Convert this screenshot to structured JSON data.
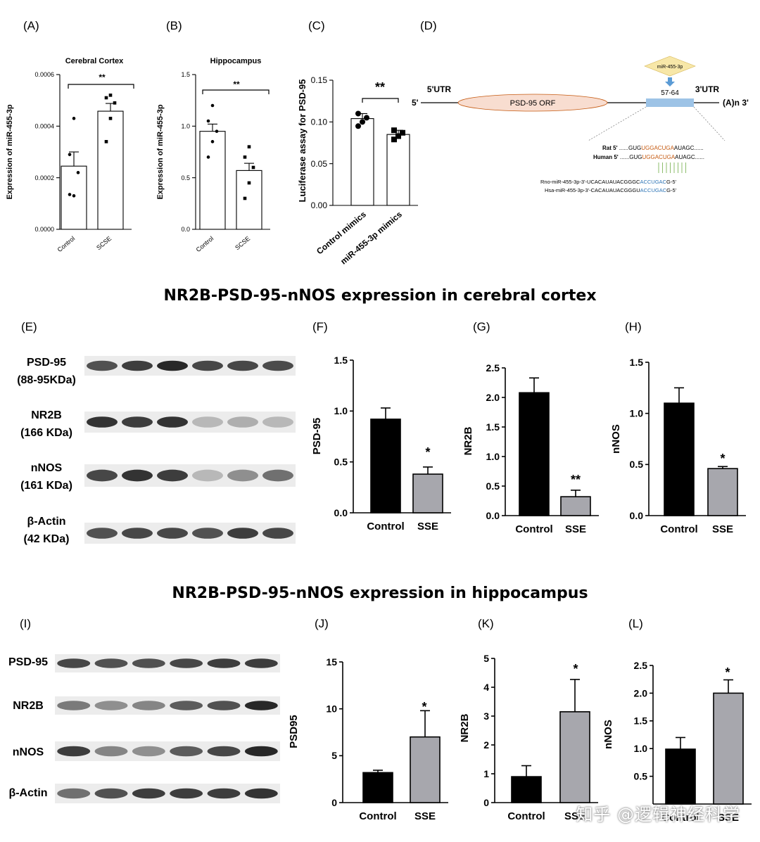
{
  "section_titles": {
    "cortex": "NR2B-PSD-95-nNOS expression in cerebral cortex",
    "hippocampus": "NR2B-PSD-95-nNOS expression in hippocampus"
  },
  "watermark": "知乎 @逻辑神经科学",
  "colors": {
    "black_bar": "#000000",
    "gray_bar": "#a7a7ad",
    "orf": "#f8ddd0",
    "utr_box": "#9dc3e6",
    "mir_box": "#f7e7a8",
    "arrow": "#5b9bd5",
    "seed_orange": "#c55a11",
    "seed_blue": "#2e75b6",
    "pair_lines": "#70ad47"
  },
  "diagram": {
    "panel": "(D)",
    "mir_label": "miR-455-3p",
    "site": "57-64",
    "utr5": "5'UTR",
    "utr3": "3'UTR",
    "end5": "5'",
    "end3": "(A)n 3'",
    "orf": "PSD-95   ORF",
    "rat_prefix": "Rat  5'",
    "rat_seq": [
      "......GUG",
      "UGGACUGA",
      "AUAGC......"
    ],
    "human_prefix": "Human  5'",
    "human_seq": [
      "......GUG",
      "UGGACUGA",
      "AUAGC......"
    ],
    "rno_line": [
      "Rno-miR-455-3p-3'-UCACAUAUACGGGC",
      "ACCUGAC",
      "G-5'"
    ],
    "hsa_line": [
      "Hsa-miR-455-3p-3'-CACAUAUACGGGU",
      "ACCUGAC",
      "G-5'"
    ]
  },
  "blots": [
    {
      "panel": "(E)",
      "rows": [
        {
          "label": [
            "PSD-95",
            "(88-95KDa)"
          ],
          "intensity": [
            0.75,
            0.85,
            0.95,
            0.8,
            0.8,
            0.78
          ]
        },
        {
          "label": [
            "NR2B",
            "(166 KDa)"
          ],
          "intensity": [
            0.9,
            0.85,
            0.9,
            0.25,
            0.3,
            0.25
          ]
        },
        {
          "label": [
            "nNOS",
            "(161 KDa)"
          ],
          "intensity": [
            0.8,
            0.9,
            0.85,
            0.25,
            0.45,
            0.6
          ]
        },
        {
          "label": [
            "β-Actin",
            "(42 KDa)"
          ],
          "intensity": [
            0.75,
            0.8,
            0.8,
            0.75,
            0.85,
            0.8
          ]
        }
      ]
    },
    {
      "panel": "(I)",
      "rows": [
        {
          "label": [
            "PSD-95"
          ],
          "intensity": [
            0.8,
            0.75,
            0.75,
            0.8,
            0.85,
            0.85
          ]
        },
        {
          "label": [
            "NR2B"
          ],
          "intensity": [
            0.55,
            0.45,
            0.5,
            0.7,
            0.75,
            0.95
          ]
        },
        {
          "label": [
            "nNOS"
          ],
          "intensity": [
            0.85,
            0.5,
            0.45,
            0.7,
            0.8,
            0.95
          ]
        },
        {
          "label": [
            "β-Actin"
          ],
          "intensity": [
            0.6,
            0.75,
            0.85,
            0.85,
            0.85,
            0.9
          ]
        }
      ]
    }
  ],
  "chart_data": [
    {
      "panel": "(A)",
      "type": "bar",
      "title": "Cerebral Cortex",
      "ylabel": "Expression of miR-455-3p",
      "categories": [
        "Control",
        "SCSE"
      ],
      "values": [
        0.000245,
        0.000458
      ],
      "errors": [
        5.5e-05,
        3e-05
      ],
      "ylim": [
        0,
        0.0006
      ],
      "yticks": [
        "0.0000",
        "0.0002",
        "0.0004",
        "0.0006"
      ],
      "ytick_values": [
        0,
        0.0002,
        0.0004,
        0.0006
      ],
      "bar_colors": [
        "#ffffff",
        "#ffffff"
      ],
      "significance": "**",
      "points": [
        [
          0.000135,
          0.00013,
          0.00022,
          0.00029,
          0.00043
        ],
        [
          0.00034,
          0.00043,
          0.00049,
          0.00051,
          0.00052
        ]
      ]
    },
    {
      "panel": "(B)",
      "type": "bar",
      "title": "Hippocampus",
      "ylabel": "Expression of miR-455-3p",
      "categories": [
        "Control",
        "SCSE"
      ],
      "values": [
        0.95,
        0.57
      ],
      "errors": [
        0.07,
        0.07
      ],
      "ylim": [
        0,
        1.5
      ],
      "yticks": [
        "0.0",
        "0.5",
        "1.0",
        "1.5"
      ],
      "ytick_values": [
        0,
        0.5,
        1.0,
        1.5
      ],
      "bar_colors": [
        "#ffffff",
        "#ffffff"
      ],
      "significance": "**",
      "points": [
        [
          0.7,
          0.85,
          0.95,
          1.05,
          1.2
        ],
        [
          0.3,
          0.45,
          0.6,
          0.7,
          0.8
        ]
      ]
    },
    {
      "panel": "(C)",
      "type": "bar",
      "title": "",
      "ylabel": "Luciferase  assay for PSD-95",
      "categories": [
        "Control mimics",
        "miR-455-3p mimics"
      ],
      "values": [
        0.104,
        0.085
      ],
      "errors": [
        0.006,
        0.005
      ],
      "ylim": [
        0,
        0.15
      ],
      "yticks": [
        "0.00",
        "0.05",
        "0.10",
        "0.15"
      ],
      "ytick_values": [
        0,
        0.05,
        0.1,
        0.15
      ],
      "bar_colors": [
        "#ffffff",
        "#ffffff"
      ],
      "significance": "**",
      "points": [
        [
          0.095,
          0.1,
          0.105,
          0.11
        ],
        [
          0.079,
          0.083,
          0.087,
          0.09
        ]
      ]
    },
    {
      "panel": "(F)",
      "type": "bar",
      "title": "",
      "ylabel": "PSD-95",
      "categories": [
        "Control",
        "SSE"
      ],
      "values": [
        0.92,
        0.38
      ],
      "errors": [
        0.11,
        0.07
      ],
      "ylim": [
        0,
        1.5
      ],
      "yticks": [
        "0.0",
        "0.5",
        "1.0",
        "1.5"
      ],
      "ytick_values": [
        0,
        0.5,
        1.0,
        1.5
      ],
      "bar_colors": [
        "#000000",
        "#a7a7ad"
      ],
      "significance": "*"
    },
    {
      "panel": "(G)",
      "type": "bar",
      "title": "",
      "ylabel": "NR2B",
      "categories": [
        "Control",
        "SSE"
      ],
      "values": [
        2.08,
        0.32
      ],
      "errors": [
        0.25,
        0.11
      ],
      "ylim": [
        0,
        2.5
      ],
      "yticks": [
        "0.0",
        "0.5",
        "1.0",
        "1.5",
        "2.0",
        "2.5"
      ],
      "ytick_values": [
        0,
        0.5,
        1.0,
        1.5,
        2.0,
        2.5
      ],
      "bar_colors": [
        "#000000",
        "#a7a7ad"
      ],
      "significance": "**"
    },
    {
      "panel": "(H)",
      "type": "bar",
      "title": "",
      "ylabel": "nNOS",
      "categories": [
        "Control",
        "SSE"
      ],
      "values": [
        1.1,
        0.46
      ],
      "errors": [
        0.15,
        0.02
      ],
      "ylim": [
        0,
        1.5
      ],
      "yticks": [
        "0.0",
        "0.5",
        "1.0",
        "1.5"
      ],
      "ytick_values": [
        0,
        0.5,
        1.0,
        1.5
      ],
      "bar_colors": [
        "#000000",
        "#a7a7ad"
      ],
      "significance": "*"
    },
    {
      "panel": "(J)",
      "type": "bar",
      "title": "",
      "ylabel": "PSD95",
      "categories": [
        "Control",
        "SSE"
      ],
      "values": [
        3.2,
        7.0
      ],
      "errors": [
        0.25,
        2.8
      ],
      "ylim": [
        0,
        15
      ],
      "yticks": [
        "0",
        "5",
        "10",
        "15"
      ],
      "ytick_values": [
        0,
        5,
        10,
        15
      ],
      "bar_colors": [
        "#000000",
        "#a7a7ad"
      ],
      "significance": "*"
    },
    {
      "panel": "(K)",
      "type": "bar",
      "title": "",
      "ylabel": "NR2B",
      "categories": [
        "Control",
        "SSE"
      ],
      "values": [
        0.9,
        3.15
      ],
      "errors": [
        0.38,
        1.12
      ],
      "ylim": [
        0,
        5
      ],
      "yticks": [
        "0",
        "1",
        "2",
        "3",
        "4",
        "5"
      ],
      "ytick_values": [
        0,
        1,
        2,
        3,
        4,
        5
      ],
      "bar_colors": [
        "#000000",
        "#a7a7ad"
      ],
      "significance": "*"
    },
    {
      "panel": "(L)",
      "type": "bar",
      "title": "",
      "ylabel": "nNOS",
      "categories": [
        "Control",
        "SSE"
      ],
      "values": [
        0.99,
        2.0
      ],
      "errors": [
        0.21,
        0.24
      ],
      "ylim": [
        0,
        2.5
      ],
      "yticks": [
        "0.5",
        "1.0",
        "1.5",
        "2.0",
        "2.5"
      ],
      "ytick_values": [
        0.5,
        1.0,
        1.5,
        2.0,
        2.5
      ],
      "bar_colors": [
        "#000000",
        "#a7a7ad"
      ],
      "significance": "*"
    }
  ]
}
